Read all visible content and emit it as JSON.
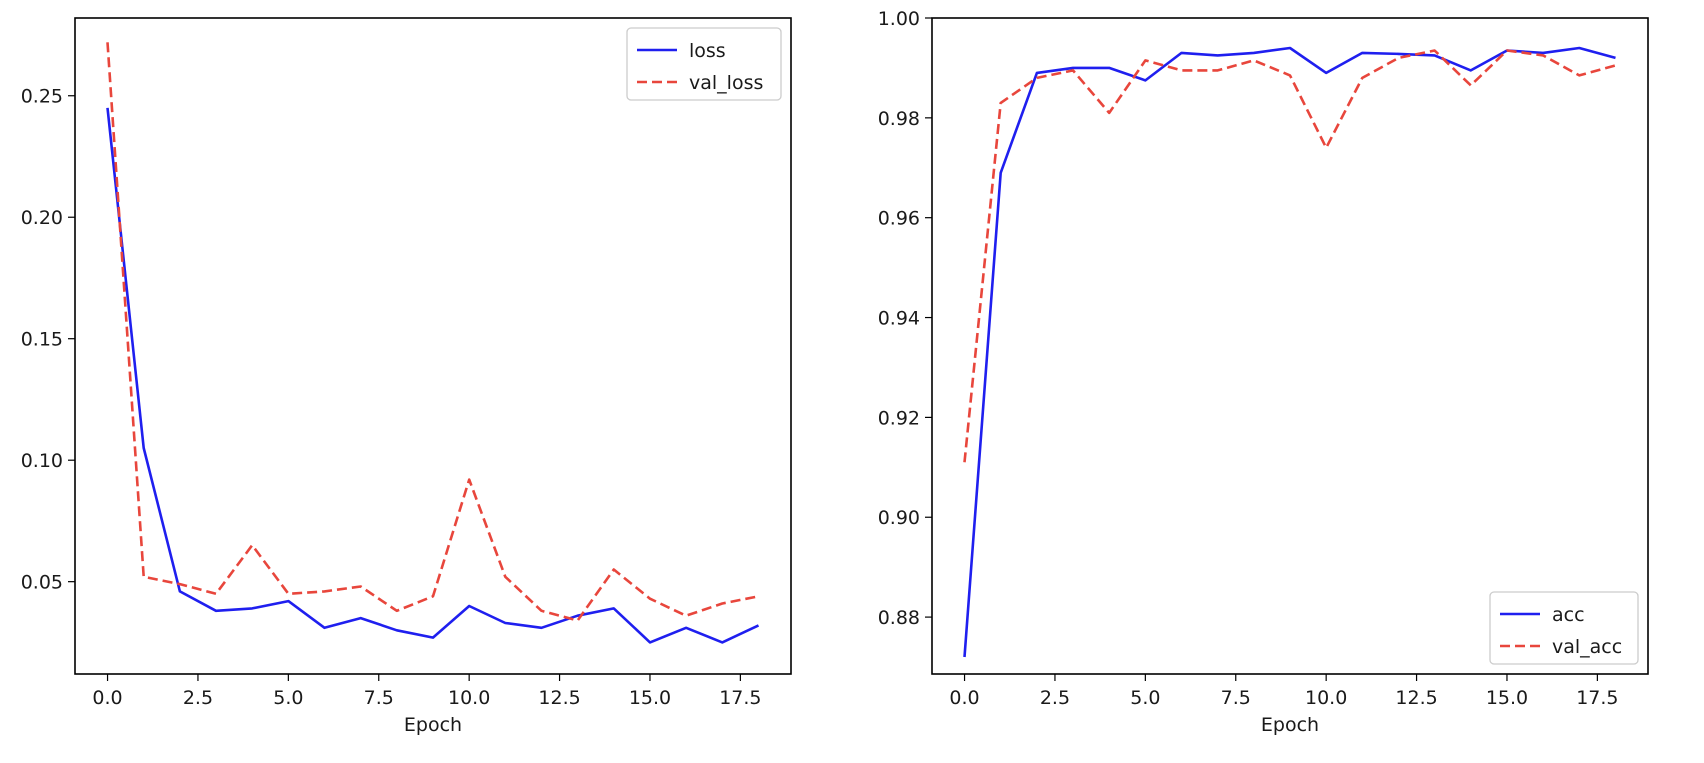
{
  "chart_data": [
    {
      "type": "line",
      "title": "",
      "xlabel": "Epoch",
      "ylabel": "",
      "xlim": [
        -0.9,
        18.9
      ],
      "ylim": [
        0.012,
        0.282
      ],
      "xticks": [
        0.0,
        2.5,
        5.0,
        7.5,
        10.0,
        12.5,
        15.0,
        17.5
      ],
      "xtick_labels": [
        "0.0",
        "2.5",
        "5.0",
        "7.5",
        "10.0",
        "12.5",
        "15.0",
        "17.5"
      ],
      "yticks": [
        0.05,
        0.1,
        0.15,
        0.2,
        0.25
      ],
      "ytick_labels": [
        "0.05",
        "0.10",
        "0.15",
        "0.20",
        "0.25"
      ],
      "grid": false,
      "legend_position": "top-right",
      "x": [
        0,
        1,
        2,
        3,
        4,
        5,
        6,
        7,
        8,
        9,
        10,
        11,
        12,
        13,
        14,
        15,
        16,
        17,
        18
      ],
      "series": [
        {
          "name": "loss",
          "color": "#1f1fef",
          "style": "solid",
          "values": [
            0.245,
            0.105,
            0.046,
            0.038,
            0.039,
            0.042,
            0.031,
            0.035,
            0.03,
            0.027,
            0.04,
            0.033,
            0.031,
            0.036,
            0.039,
            0.025,
            0.031,
            0.025,
            0.032
          ]
        },
        {
          "name": "val_loss",
          "color": "#e8463c",
          "style": "dashed",
          "values": [
            0.272,
            0.052,
            0.049,
            0.045,
            0.065,
            0.045,
            0.046,
            0.048,
            0.038,
            0.044,
            0.092,
            0.052,
            0.038,
            0.034,
            0.055,
            0.043,
            0.036,
            0.041,
            0.044
          ]
        }
      ]
    },
    {
      "type": "line",
      "title": "",
      "xlabel": "Epoch",
      "ylabel": "",
      "xlim": [
        -0.9,
        18.9
      ],
      "ylim": [
        0.8686,
        1.0
      ],
      "xticks": [
        0.0,
        2.5,
        5.0,
        7.5,
        10.0,
        12.5,
        15.0,
        17.5
      ],
      "xtick_labels": [
        "0.0",
        "2.5",
        "5.0",
        "7.5",
        "10.0",
        "12.5",
        "15.0",
        "17.5"
      ],
      "yticks": [
        0.88,
        0.9,
        0.92,
        0.94,
        0.96,
        0.98,
        1.0
      ],
      "ytick_labels": [
        "0.88",
        "0.90",
        "0.92",
        "0.94",
        "0.96",
        "0.98",
        "1.00"
      ],
      "grid": false,
      "legend_position": "bottom-right",
      "x": [
        0,
        1,
        2,
        3,
        4,
        5,
        6,
        7,
        8,
        9,
        10,
        11,
        12,
        13,
        14,
        15,
        16,
        17,
        18
      ],
      "series": [
        {
          "name": "acc",
          "color": "#1f1fef",
          "style": "solid",
          "values": [
            0.872,
            0.969,
            0.989,
            0.99,
            0.99,
            0.9875,
            0.993,
            0.9925,
            0.993,
            0.994,
            0.989,
            0.993,
            0.9928,
            0.9925,
            0.9895,
            0.9935,
            0.993,
            0.994,
            0.992
          ]
        },
        {
          "name": "val_acc",
          "color": "#e8463c",
          "style": "dashed",
          "values": [
            0.911,
            0.983,
            0.988,
            0.9895,
            0.981,
            0.9915,
            0.9895,
            0.9895,
            0.9915,
            0.9885,
            0.974,
            0.988,
            0.992,
            0.9935,
            0.9865,
            0.9935,
            0.9925,
            0.9885,
            0.9905
          ]
        }
      ]
    }
  ]
}
